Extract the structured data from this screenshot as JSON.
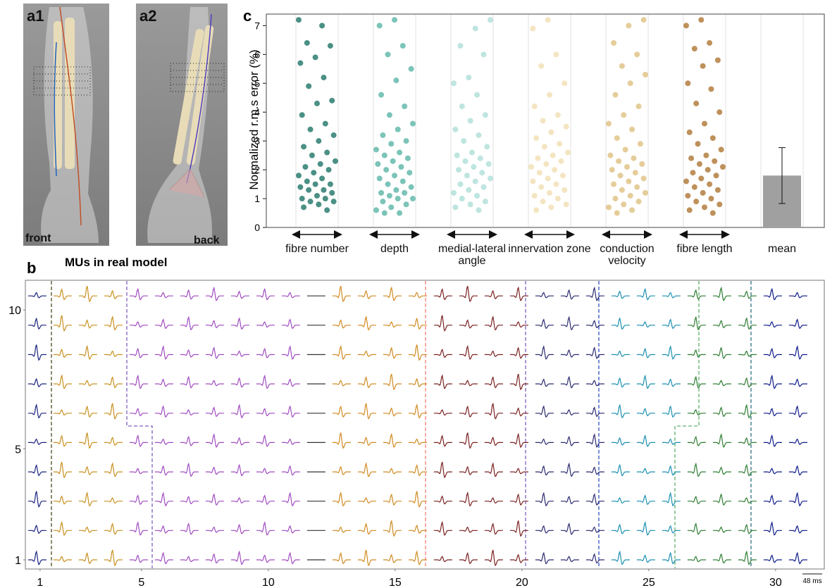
{
  "images": [
    {
      "label": "a1",
      "caption": "front"
    },
    {
      "label": "a2",
      "caption": "back"
    }
  ],
  "chart_data": [
    {
      "type": "strip",
      "label": "c",
      "ylabel": "Normalized r.m.s error (%)",
      "ylim": [
        0,
        7.4
      ],
      "yticks": [
        0,
        1,
        2,
        3,
        4,
        5,
        6,
        7
      ],
      "grid": true,
      "categories": [
        "fibre number",
        "depth",
        "medial-lateral angle",
        "innervation zone",
        "conduction velocity",
        "fibre length"
      ],
      "groups": [
        {
          "color": "#0f6b5c",
          "values": [
            7.2,
            7.0,
            6.4,
            6.3,
            5.9,
            5.7,
            5.2,
            4.9,
            4.4,
            4.3,
            3.9,
            3.6,
            3.4,
            3.2,
            3.0,
            2.8,
            2.6,
            2.5,
            2.3,
            2.2,
            2.1,
            2.0,
            1.9,
            1.8,
            1.7,
            1.6,
            1.5,
            1.5,
            1.4,
            1.3,
            1.3,
            1.2,
            1.1,
            1.0,
            1.0,
            0.9,
            0.9,
            0.8,
            0.7,
            0.6
          ]
        },
        {
          "color": "#4fb0a0",
          "values": [
            7.2,
            7.0,
            6.3,
            6.0,
            5.5,
            5.1,
            4.6,
            4.2,
            3.9,
            3.6,
            3.4,
            3.2,
            3.0,
            2.9,
            2.7,
            2.6,
            2.5,
            2.4,
            2.3,
            2.2,
            2.1,
            2.0,
            1.9,
            1.8,
            1.7,
            1.6,
            1.5,
            1.4,
            1.3,
            1.2,
            1.2,
            1.1,
            1.0,
            1.0,
            0.9,
            0.8,
            0.7,
            0.6,
            0.5,
            0.5
          ]
        },
        {
          "color": "#a8dcd4",
          "values": [
            7.2,
            6.9,
            6.3,
            6.0,
            5.2,
            5.0,
            4.6,
            4.2,
            3.9,
            3.7,
            3.4,
            3.2,
            3.0,
            2.8,
            2.6,
            2.5,
            2.4,
            2.3,
            2.2,
            2.1,
            2.0,
            1.9,
            1.8,
            1.7,
            1.6,
            1.5,
            1.4,
            1.3,
            1.2,
            1.1,
            1.0,
            0.9,
            0.8,
            0.7,
            0.6
          ]
        },
        {
          "color": "#f0dcae",
          "values": [
            7.2,
            6.9,
            6.0,
            5.6,
            5.0,
            4.6,
            4.2,
            3.9,
            3.7,
            3.5,
            3.3,
            3.1,
            2.9,
            2.8,
            2.6,
            2.5,
            2.4,
            2.3,
            2.2,
            2.1,
            2.0,
            1.9,
            1.8,
            1.7,
            1.6,
            1.5,
            1.4,
            1.3,
            1.2,
            1.1,
            1.0,
            0.9,
            0.8,
            0.7,
            0.6
          ]
        },
        {
          "color": "#dcbc78",
          "values": [
            7.2,
            7.0,
            6.4,
            6.0,
            5.6,
            5.3,
            5.0,
            4.6,
            4.2,
            3.9,
            3.6,
            3.4,
            3.1,
            2.9,
            2.7,
            2.5,
            2.4,
            2.3,
            2.2,
            2.1,
            2.0,
            1.9,
            1.8,
            1.7,
            1.6,
            1.5,
            1.4,
            1.3,
            1.2,
            1.1,
            1.0,
            0.9,
            0.8,
            0.7,
            0.6,
            0.5
          ]
        },
        {
          "color": "#a86c24",
          "values": [
            7.2,
            7.0,
            6.4,
            6.2,
            5.8,
            5.6,
            5.0,
            4.8,
            4.3,
            4.0,
            3.6,
            3.3,
            3.1,
            2.9,
            2.7,
            2.5,
            2.4,
            2.3,
            2.2,
            2.1,
            2.0,
            1.9,
            1.8,
            1.7,
            1.6,
            1.5,
            1.4,
            1.3,
            1.2,
            1.1,
            1.0,
            0.9,
            0.8,
            0.7,
            0.6,
            0.5
          ]
        }
      ],
      "mean": {
        "label": "mean",
        "value": 1.8,
        "error": 0.97,
        "color": "#a0a0a0"
      }
    },
    {
      "type": "waveform-grid",
      "label": "b",
      "title": "MUs in real model",
      "xlim": [
        0.42,
        31.92
      ],
      "ylim": [
        0.67,
        11.07
      ],
      "xticks": [
        1,
        5,
        10,
        15,
        20,
        25,
        30
      ],
      "yticks": [
        1,
        5,
        10
      ],
      "scale_bar": "48 ms",
      "mu_colors": [
        "#1a237e",
        "#c8901e",
        "#c8901e",
        "#c8901e",
        "#a04cc0",
        "#a04cc0",
        "#a04cc0",
        "#a04cc0",
        "#a04cc0",
        "#a04cc0",
        "#a04cc0",
        "#333333",
        "#d08a20",
        "#d08a20",
        "#d08a20",
        "#d08a20",
        "#7a2020",
        "#7a2020",
        "#7a2020",
        "#7a2020",
        "#2a2a70",
        "#2a2a70",
        "#2a2a70",
        "#1a8fb0",
        "#1a8fb0",
        "#1a8fb0",
        "#2e7d32",
        "#2e7d32",
        "#2e7d32",
        "#0d1a8a",
        "#0d1a8a"
      ]
    }
  ]
}
